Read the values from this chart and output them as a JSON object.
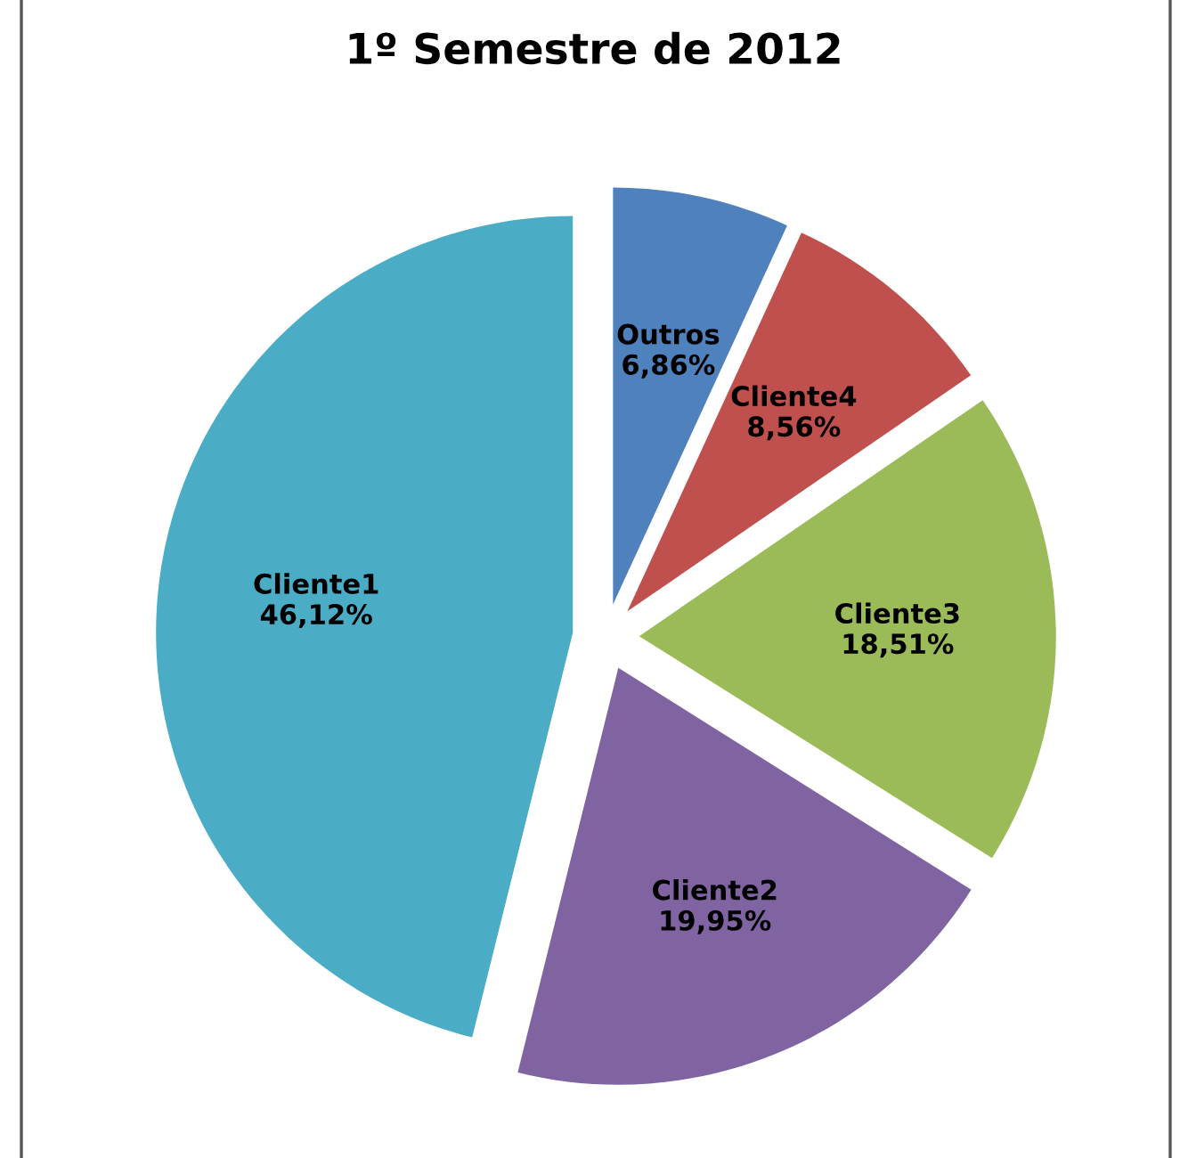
{
  "chart_data": {
    "type": "pie",
    "title": "1º Semestre de 2012",
    "categories": [
      "Outros",
      "Cliente4",
      "Cliente3",
      "Cliente2",
      "Cliente1"
    ],
    "values": [
      6.86,
      8.56,
      18.51,
      19.95,
      46.12
    ],
    "value_labels": [
      "6,86%",
      "8,56%",
      "18,51%",
      "19,95%",
      "46,12%"
    ],
    "colors": [
      "#4f81bd",
      "#c0504d",
      "#9bbb59",
      "#8064a2",
      "#4bacc6"
    ],
    "legend": false
  }
}
